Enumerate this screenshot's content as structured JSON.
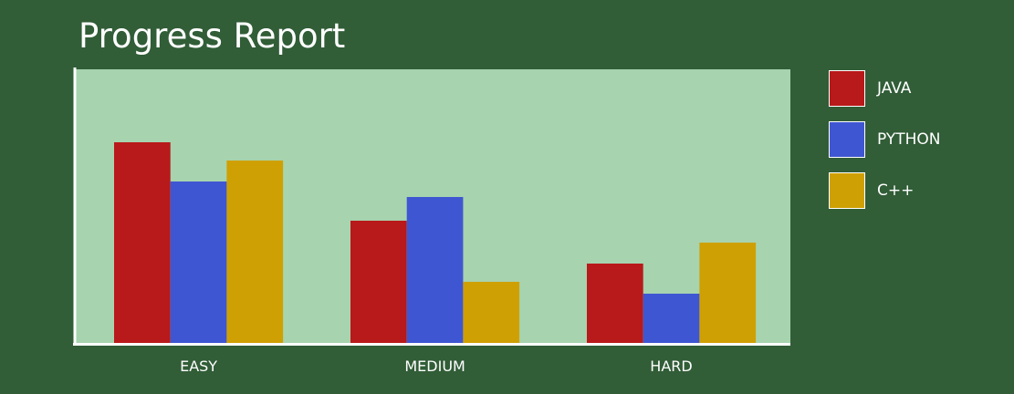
{
  "colors": {
    "background": "#315d37",
    "plot_background": "#a7d3ae",
    "axis": "#ffffff",
    "text": "#ffffff"
  },
  "chart_data": {
    "type": "bar",
    "title": "Progress Report",
    "categories": [
      "EASY",
      "MEDIUM",
      "HARD"
    ],
    "series": [
      {
        "name": "JAVA",
        "color": "#b8191a",
        "values": [
          22,
          13.4,
          8.7
        ]
      },
      {
        "name": "PYTHON",
        "color": "#3f56d2",
        "values": [
          17.7,
          16,
          5.4
        ]
      },
      {
        "name": "C++",
        "color": "#cfa003",
        "values": [
          20,
          6.7,
          11
        ]
      }
    ],
    "xlabel": "",
    "ylabel": "",
    "ylim": [
      0,
      30
    ],
    "grid": false,
    "legend_position": "right"
  }
}
